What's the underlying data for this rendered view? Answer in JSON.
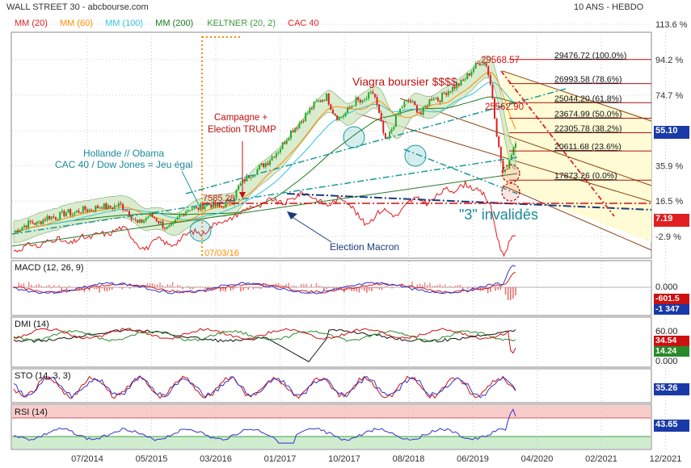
{
  "header": {
    "title": "WALL STREET 30 - abcbourse.com",
    "period": "10 ANS - HEBDO"
  },
  "legend": [
    {
      "label": "MM (20)",
      "color": "#e31a1c"
    },
    {
      "label": "MM (60)",
      "color": "#ff8c00"
    },
    {
      "label": "MM (100)",
      "color": "#2ec4e0"
    },
    {
      "label": "MM (200)",
      "color": "#1a7a1a"
    },
    {
      "label": "KELTNER (20, 2)",
      "color": "#3a9a3a"
    },
    {
      "label": "CAC 40",
      "color": "#e31a1c"
    }
  ],
  "colors": {
    "up": "#22aa22",
    "down": "#d62020",
    "macd_line": "#3333cc",
    "signal_line": "#cc2222",
    "fib_line": "#b01010",
    "channel": "#8b4513",
    "teal": "#1a9a9a",
    "navy": "#1a3a7a"
  },
  "chart_data": [
    {
      "type": "line",
      "name": "main",
      "title": "WALL STREET 30",
      "y_axis_labels": [
        "113.6 %",
        "94.2 %",
        "74.7 %",
        "55.1 %",
        "35.9 %",
        "16.5 %",
        "-2.9 %"
      ],
      "y_axis_values": [
        113.6,
        94.2,
        74.7,
        55.1,
        35.9,
        16.5,
        -2.9
      ],
      "ylim": [
        -10,
        118
      ],
      "x_tick_labels": [
        "07/2014",
        "05/2015",
        "03/2016",
        "01/2017",
        "10/2017",
        "08/2018",
        "06/2019",
        "04/2020",
        "02/2021",
        "12/2021"
      ],
      "current_value_badges": [
        {
          "label": "55.10",
          "color": "#1a3aa8",
          "value": 55.1
        },
        {
          "label": "7.19",
          "color": "#e02020",
          "value": 7.19
        }
      ],
      "price_series_pct": [
        -0.5,
        1.5,
        3.5,
        5.0,
        4.0,
        6.5,
        8.0,
        7.5,
        9.0,
        10.5,
        9.5,
        11.0,
        12.0,
        11.5,
        13.0,
        14.0,
        12.5,
        13.5,
        14.5,
        12.0,
        8.0,
        4.0,
        6.0,
        9.0,
        7.0,
        4.0,
        1.0,
        3.0,
        8.0,
        11.0,
        13.0,
        12.0,
        14.0,
        15.0,
        14.0,
        13.0,
        15.5,
        17.0,
        24.0,
        28.0,
        31.0,
        33.0,
        36.0,
        38.0,
        42.0,
        45.0,
        50.0,
        55.0,
        58.0,
        62.0,
        66.0,
        70.0,
        72.0,
        74.0,
        66.0,
        62.0,
        64.0,
        68.0,
        72.0,
        70.0,
        74.0,
        76.0,
        62.0,
        48.0,
        56.0,
        64.0,
        70.0,
        72.0,
        68.0,
        64.0,
        70.0,
        74.0,
        72.0,
        76.0,
        78.0,
        80.0,
        82.0,
        86.0,
        90.0,
        93.0,
        92.0,
        76.0,
        48.0,
        30.0,
        40.0,
        50.0
      ],
      "cac40_series_pct": [
        1.0,
        2.0,
        4.0,
        5.0,
        3.0,
        6.0,
        7.0,
        8.0,
        6.0,
        5.0,
        7.0,
        9.0,
        8.0,
        10.0,
        11.0,
        10.0,
        12.0,
        14.0,
        13.0,
        8.0,
        4.0,
        2.0,
        5.0,
        8.0,
        6.0,
        4.0,
        6.0,
        9.0,
        11.0,
        12.0,
        10.0,
        13.0,
        16.0,
        18.0,
        17.0,
        20.0,
        22.0,
        24.0,
        26.0,
        25.0,
        27.0,
        30.0,
        28.0,
        27.0,
        29.0,
        31.0,
        33.0,
        32.0,
        30.0,
        28.0,
        26.0,
        28.0,
        30.0,
        29.0,
        25.0,
        20.0,
        16.0,
        18.0,
        22.0,
        24.0,
        22.0,
        20.0,
        24.0,
        28.0,
        30.0,
        29.0,
        27.0,
        30.0,
        33.0,
        35.0,
        34.0,
        36.0,
        38.0,
        36.0,
        34.0,
        32.0,
        26.0,
        10.0,
        -2.0,
        6.0,
        10.0
      ],
      "fibonacci": [
        {
          "label": "29476.72 (100.0%)",
          "value": 94.2
        },
        {
          "label": "26993.58 (78.6%)",
          "value": 81.0
        },
        {
          "label": "25044.20 (61.8%)",
          "value": 70.5
        },
        {
          "label": "23674.99 (50.0%)",
          "value": 62.0
        },
        {
          "label": "22305.78 (38.2%)",
          "value": 54.0
        },
        {
          "label": "20611.68 (23.6%)",
          "value": 44.0
        },
        {
          "label": "17873.26 (0.0%)",
          "value": 28.0
        }
      ],
      "price_labels": [
        {
          "label": "29568.57",
          "value": 96.0
        },
        {
          "label": "25562.90",
          "value": 66.0
        },
        {
          "label": "7585.28",
          "value": 24.0
        },
        {
          "label": "07/03/16",
          "value": -5.0
        }
      ],
      "annotations": [
        "Viagra boursier $$$$",
        "Campagne +",
        "Election TRUMP",
        "Hollande // Obama",
        "CAC 40 / Dow Jones = Jeu égal",
        "Election Macron",
        "\"3\" invalidés"
      ]
    },
    {
      "type": "line",
      "name": "MACD",
      "title": "MACD (12, 26, 9)",
      "y_axis_labels": [
        "0.000"
      ],
      "badges": [
        {
          "label": "-601.5",
          "color": "#cc1111",
          "value": -601.5
        },
        {
          "label": "-1 347",
          "color": "#1a3aa8",
          "value": -1347
        }
      ]
    },
    {
      "type": "line",
      "name": "DMI",
      "title": "DMI (14)",
      "y_axis_labels": [
        "60.00",
        "0.000"
      ],
      "badges": [
        {
          "label": "34.54",
          "color": "#cc1111",
          "value": 34.54
        },
        {
          "label": "14.24",
          "color": "#2a8a2a",
          "value": 14.24
        }
      ]
    },
    {
      "type": "line",
      "name": "STO",
      "title": "STO (14, 3, 3)",
      "badges": [
        {
          "label": "35.26",
          "color": "#1a3aa8",
          "value": 35.26
        }
      ]
    },
    {
      "type": "line",
      "name": "RSI",
      "title": "RSI (14)",
      "badges": [
        {
          "label": "43.65",
          "color": "#1a3aa8",
          "value": 43.65
        }
      ]
    }
  ]
}
